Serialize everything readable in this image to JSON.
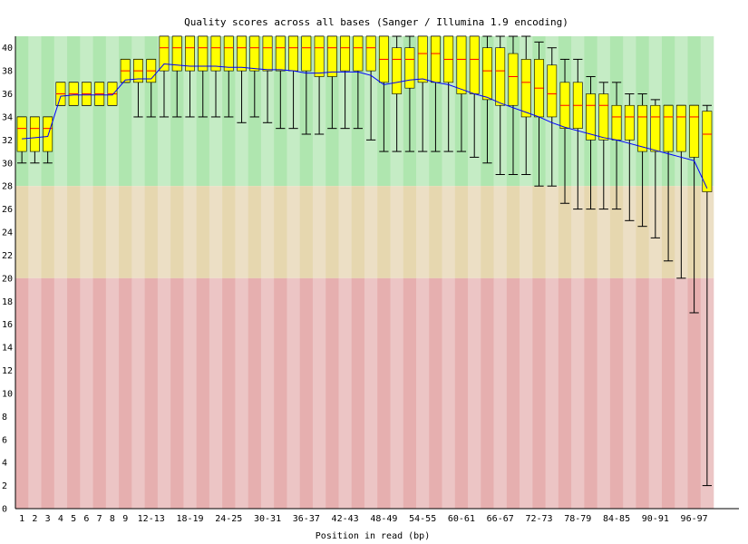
{
  "chart_data": {
    "type": "box",
    "title": "Quality scores across all bases (Sanger / Illumina 1.9 encoding)",
    "xlabel": "Position in read (bp)",
    "ylabel": "",
    "ylim": [
      0,
      41
    ],
    "y_ticks": [
      0,
      2,
      4,
      6,
      8,
      10,
      12,
      14,
      16,
      18,
      20,
      22,
      24,
      26,
      28,
      30,
      32,
      34,
      36,
      38,
      40
    ],
    "quality_bands": [
      {
        "name": "good",
        "from": 28,
        "to": 41,
        "color_dark": "#afe6af",
        "color_light": "#c5ecc5"
      },
      {
        "name": "reasonable",
        "from": 20,
        "to": 28,
        "color_dark": "#e6d7af",
        "color_light": "#ecdfc5"
      },
      {
        "name": "poor",
        "from": 0,
        "to": 20,
        "color_dark": "#e6afaf",
        "color_light": "#ecc5c5"
      }
    ],
    "colors": {
      "box": "#ffff00",
      "median": "#ff0000",
      "mean_line": "#0000ff",
      "whisker": "#000000"
    },
    "categories": [
      "1",
      "2",
      "3",
      "4",
      "5",
      "6",
      "7",
      "8",
      "9",
      "10-11",
      "12-13",
      "14-15",
      "16-17",
      "18-19",
      "20-21",
      "22-23",
      "24-25",
      "26-27",
      "28-29",
      "30-31",
      "32-33",
      "34-35",
      "36-37",
      "38-39",
      "40-41",
      "42-43",
      "44-45",
      "46-47",
      "48-49",
      "50-51",
      "52-53",
      "54-55",
      "56-57",
      "58-59",
      "60-61",
      "62-63",
      "64-65",
      "66-67",
      "68-69",
      "70-71",
      "72-73",
      "74-75",
      "76-77",
      "78-79",
      "80-81",
      "82-83",
      "84-85",
      "86-87",
      "88-89",
      "90-91",
      "92-93",
      "94-95",
      "96-97",
      "98-99"
    ],
    "tick_labels": [
      "1",
      "2",
      "3",
      "4",
      "5",
      "6",
      "7",
      "8",
      "9",
      "12-13",
      "18-19",
      "24-25",
      "30-31",
      "36-37",
      "42-43",
      "48-49",
      "54-55",
      "60-61",
      "66-67",
      "72-73",
      "78-79",
      "84-85",
      "90-91",
      "96-97"
    ],
    "series": [
      {
        "name": "median",
        "values": [
          33,
          33,
          33,
          36,
          36,
          36,
          36,
          36,
          38,
          38,
          38,
          40,
          40,
          40,
          40,
          40,
          40,
          40,
          40,
          40,
          40,
          40,
          40,
          40,
          40,
          40,
          40,
          40,
          39,
          39,
          39,
          39.5,
          39.5,
          39,
          39,
          39,
          38,
          38,
          37.5,
          37,
          36.5,
          36,
          35,
          35,
          35,
          35,
          34,
          34,
          34,
          34,
          34,
          34,
          34,
          32.5
        ]
      },
      {
        "name": "mean",
        "values": [
          32.1,
          32.2,
          32.3,
          35.8,
          35.9,
          35.9,
          35.9,
          35.9,
          37.2,
          37.3,
          37.3,
          38.6,
          38.5,
          38.4,
          38.4,
          38.4,
          38.3,
          38.3,
          38.2,
          38.1,
          38.1,
          38.0,
          37.8,
          37.8,
          37.9,
          37.9,
          37.9,
          37.6,
          36.8,
          37.0,
          37.2,
          37.3,
          37.0,
          36.8,
          36.4,
          36.0,
          35.7,
          35.2,
          34.8,
          34.4,
          34.0,
          33.5,
          33.1,
          32.8,
          32.5,
          32.2,
          32.0,
          31.7,
          31.4,
          31.1,
          30.8,
          30.5,
          30.2,
          27.8
        ]
      },
      {
        "name": "upper_quartile",
        "values": [
          34,
          34,
          34,
          37,
          37,
          37,
          37,
          37,
          39,
          39,
          39,
          41,
          41,
          41,
          41,
          41,
          41,
          41,
          41,
          41,
          41,
          41,
          41,
          41,
          41,
          41,
          41,
          41,
          41,
          40,
          40,
          41,
          41,
          41,
          41,
          41,
          40,
          40,
          39.5,
          39,
          39,
          38.5,
          37,
          37,
          36,
          36,
          35,
          35,
          35,
          35,
          35,
          35,
          35,
          34.5
        ]
      },
      {
        "name": "lower_quartile",
        "values": [
          31,
          31,
          31,
          35,
          35,
          35,
          35,
          35,
          37,
          37,
          37,
          38,
          38,
          38,
          38,
          38,
          38,
          38,
          38,
          38,
          38,
          38,
          38,
          37.5,
          37.5,
          38,
          38,
          38,
          37,
          36,
          36.5,
          37,
          37,
          37,
          36,
          36,
          35.5,
          35,
          35,
          34,
          34,
          34,
          33,
          33,
          32,
          32,
          32,
          32,
          31,
          31,
          31,
          31,
          30.5,
          27.5
        ]
      },
      {
        "name": "upper_whisker",
        "values": [
          34,
          34,
          34,
          37,
          37,
          37,
          37,
          37,
          39,
          39,
          39,
          41,
          41,
          41,
          41,
          41,
          41,
          41,
          41,
          41,
          41,
          41,
          41,
          41,
          41,
          41,
          41,
          41,
          41,
          41,
          41,
          41,
          41,
          41,
          41,
          41,
          41,
          41,
          41,
          41,
          40.5,
          40,
          39,
          39,
          37.5,
          37,
          37,
          36,
          36,
          35.5,
          35,
          35,
          35,
          35
        ]
      },
      {
        "name": "lower_whisker",
        "values": [
          30,
          30,
          30,
          35,
          35,
          35,
          35,
          35,
          37,
          34,
          34,
          34,
          34,
          34,
          34,
          34,
          34,
          33.5,
          34,
          33.5,
          33,
          33,
          32.5,
          32.5,
          33,
          33,
          33,
          32,
          31,
          31,
          31,
          31,
          31,
          31,
          31,
          30.5,
          30,
          29,
          29,
          29,
          28,
          28,
          26.5,
          26,
          26,
          26,
          26,
          25,
          24.5,
          23.5,
          21.5,
          20,
          17,
          2
        ]
      }
    ]
  }
}
